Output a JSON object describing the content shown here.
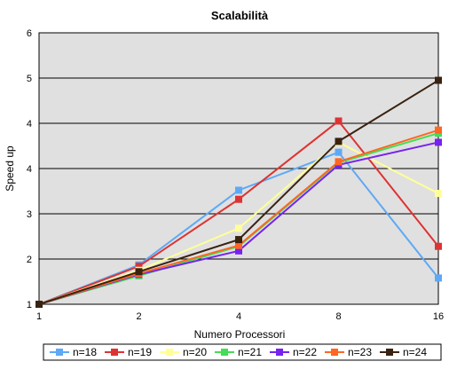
{
  "chart_data": {
    "type": "line",
    "title": "Scalabilità",
    "xlabel": "Numero Processori",
    "ylabel": "Speed up",
    "x": [
      "1",
      "2",
      "4",
      "8",
      "16"
    ],
    "y_ticks": [
      "1",
      "2",
      "3",
      "4",
      "4",
      "5",
      "6"
    ],
    "ylim": [
      1,
      7
    ],
    "grid": "horizontal",
    "legend_position": "bottom",
    "series": [
      {
        "name": "n=18",
        "color": "#5da9f6",
        "values": [
          1.0,
          1.87,
          3.52,
          4.36,
          1.58
        ]
      },
      {
        "name": "n=19",
        "color": "#dd3333",
        "values": [
          1.0,
          1.84,
          3.32,
          5.05,
          2.28
        ]
      },
      {
        "name": "n=20",
        "color": "#ffff99",
        "values": [
          1.0,
          1.75,
          2.68,
          4.58,
          3.45
        ]
      },
      {
        "name": "n=21",
        "color": "#44dd55",
        "values": [
          1.0,
          1.63,
          2.28,
          4.13,
          4.78
        ]
      },
      {
        "name": "n=22",
        "color": "#7722ee",
        "values": [
          1.0,
          1.66,
          2.18,
          4.08,
          4.58
        ]
      },
      {
        "name": "n=23",
        "color": "#ff6622",
        "values": [
          1.0,
          1.68,
          2.3,
          4.15,
          4.85
        ]
      },
      {
        "name": "n=24",
        "color": "#3a2210",
        "values": [
          1.0,
          1.72,
          2.43,
          4.6,
          5.95
        ]
      }
    ]
  }
}
